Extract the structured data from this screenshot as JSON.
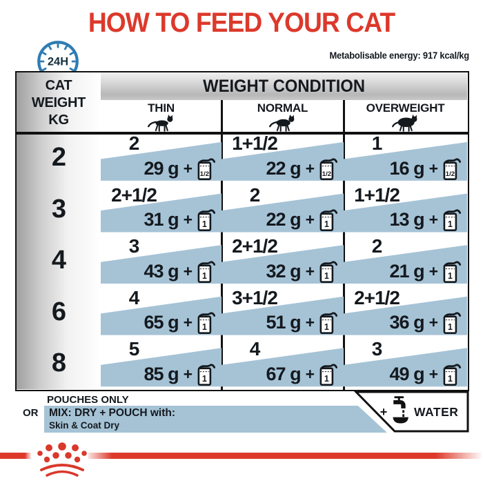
{
  "title": "HOW TO FEED YOUR CAT",
  "badge": {
    "label": "24H"
  },
  "energy_note": "Metabolisable energy: 917 kcal/kg",
  "table": {
    "corner": [
      "CAT",
      "WEIGHT",
      "KG"
    ],
    "header": "WEIGHT CONDITION",
    "plus": "+",
    "conditions": [
      {
        "label": "THIN",
        "icon": "thin-cat"
      },
      {
        "label": "NORMAL",
        "icon": "normal-cat"
      },
      {
        "label": "OVERWEIGHT",
        "icon": "overweight-cat"
      }
    ],
    "rows": [
      {
        "weight": "2",
        "cells": [
          {
            "pouches": "2",
            "grams": "29 g",
            "dry_measure": "1/2"
          },
          {
            "pouches": "1+1/2",
            "grams": "22 g",
            "dry_measure": "1/2"
          },
          {
            "pouches": "1",
            "grams": "16 g",
            "dry_measure": "1/2"
          }
        ]
      },
      {
        "weight": "3",
        "cells": [
          {
            "pouches": "2+1/2",
            "grams": "31 g",
            "dry_measure": "1"
          },
          {
            "pouches": "2",
            "grams": "22 g",
            "dry_measure": "1"
          },
          {
            "pouches": "1+1/2",
            "grams": "13 g",
            "dry_measure": "1"
          }
        ]
      },
      {
        "weight": "4",
        "cells": [
          {
            "pouches": "3",
            "grams": "43 g",
            "dry_measure": "1"
          },
          {
            "pouches": "2+1/2",
            "grams": "32 g",
            "dry_measure": "1"
          },
          {
            "pouches": "2",
            "grams": "21 g",
            "dry_measure": "1"
          }
        ]
      },
      {
        "weight": "6",
        "cells": [
          {
            "pouches": "4",
            "grams": "65 g",
            "dry_measure": "1"
          },
          {
            "pouches": "3+1/2",
            "grams": "51 g",
            "dry_measure": "1"
          },
          {
            "pouches": "2+1/2",
            "grams": "36 g",
            "dry_measure": "1"
          }
        ]
      },
      {
        "weight": "8",
        "cells": [
          {
            "pouches": "5",
            "grams": "85 g",
            "dry_measure": "1"
          },
          {
            "pouches": "4",
            "grams": "67 g",
            "dry_measure": "1"
          },
          {
            "pouches": "3",
            "grams": "49 g",
            "dry_measure": "1"
          }
        ]
      }
    ]
  },
  "footer": {
    "pouches_only": "POUCHES ONLY",
    "or_label": "OR",
    "mix_line1": "MIX: DRY + POUCH with:",
    "mix_line2": "Skin & Coat Dry",
    "water_plus": "+",
    "water_label": "WATER"
  },
  "colors": {
    "brand_red": "#DC392B",
    "band_blue": "#A6C3D6",
    "clock_blue": "#2F7CB3",
    "text_dark": "#14191E"
  }
}
